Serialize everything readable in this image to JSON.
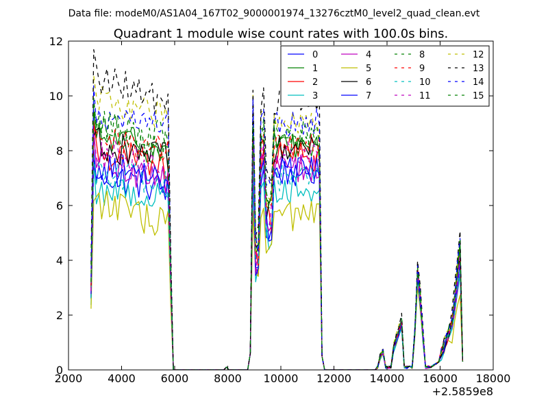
{
  "chart_data": {
    "type": "line",
    "suptitle": "Data file: modeM0/AS1A04_167T02_9000001974_13276cztM0_level2_quad_clean.evt",
    "title": "Quadrant 1 module wise count rates with 100.0s bins.",
    "xlabel": "",
    "ylabel": "",
    "x_offset_label": "+2.5859e8",
    "xlim": [
      2000,
      18000
    ],
    "ylim": [
      0,
      12
    ],
    "xticks": [
      2000,
      4000,
      6000,
      8000,
      10000,
      12000,
      14000,
      16000,
      18000
    ],
    "yticks": [
      0,
      2,
      4,
      6,
      8,
      10,
      12
    ],
    "grid": false,
    "legend_position": "top-right",
    "legend_columns": 4,
    "x_step": 100,
    "segments": [
      {
        "x_start": 2850,
        "x_end": 5850
      },
      {
        "x_start": 5950,
        "x_end": 8750,
        "level": 0.0
      },
      {
        "x_start": 8850,
        "x_end": 11550
      },
      {
        "x_start": 11650,
        "x_end": 13550,
        "level": 0.0
      },
      {
        "x_start": 13650,
        "x_end": 16850
      }
    ],
    "series": [
      {
        "name": "0",
        "color": "#0000ff",
        "dashed": false,
        "levels": [
          7.2,
          6.6,
          5.0,
          7.2,
          3.8,
          2.6,
          1.7,
          0.9,
          3.3,
          1.0
        ]
      },
      {
        "name": "1",
        "color": "#008000",
        "dashed": false,
        "levels": [
          8.5,
          8.0,
          6.0,
          8.2,
          4.2,
          3.0,
          1.9,
          1.0,
          3.6,
          1.1
        ]
      },
      {
        "name": "2",
        "color": "#ff0000",
        "dashed": false,
        "levels": [
          8.0,
          7.4,
          5.5,
          7.8,
          4.0,
          2.8,
          1.7,
          0.9,
          3.4,
          1.0
        ]
      },
      {
        "name": "3",
        "color": "#00bfbf",
        "dashed": false,
        "levels": [
          6.6,
          6.3,
          4.9,
          6.6,
          3.6,
          2.5,
          1.6,
          0.8,
          3.1,
          0.9
        ]
      },
      {
        "name": "4",
        "color": "#bf00bf",
        "dashed": false,
        "levels": [
          7.6,
          7.0,
          5.3,
          7.4,
          3.9,
          2.7,
          1.7,
          0.9,
          3.3,
          1.0
        ]
      },
      {
        "name": "5",
        "color": "#bfbf00",
        "dashed": false,
        "levels": [
          6.2,
          5.3,
          4.4,
          5.6,
          3.4,
          2.4,
          1.6,
          0.8,
          3.0,
          0.9
        ]
      },
      {
        "name": "6",
        "color": "#000000",
        "dashed": false,
        "levels": [
          8.3,
          7.7,
          5.8,
          8.0,
          4.1,
          2.9,
          1.8,
          0.9,
          3.5,
          1.0
        ]
      },
      {
        "name": "7",
        "color": "#0000ff",
        "dashed": false,
        "levels": [
          7.4,
          7.0,
          5.2,
          7.3,
          3.9,
          2.7,
          1.7,
          0.9,
          3.3,
          1.0
        ]
      },
      {
        "name": "8",
        "color": "#008000",
        "dashed": true,
        "levels": [
          9.0,
          8.2,
          6.2,
          8.4,
          4.3,
          3.0,
          1.9,
          1.0,
          3.7,
          1.1
        ]
      },
      {
        "name": "9",
        "color": "#ff0000",
        "dashed": true,
        "levels": [
          8.4,
          8.0,
          6.0,
          8.2,
          4.2,
          3.0,
          1.8,
          1.0,
          3.6,
          1.1
        ]
      },
      {
        "name": "10",
        "color": "#00bfbf",
        "dashed": true,
        "levels": [
          7.3,
          6.8,
          5.0,
          7.0,
          3.8,
          2.6,
          1.6,
          0.9,
          3.2,
          1.0
        ]
      },
      {
        "name": "11",
        "color": "#bf00bf",
        "dashed": true,
        "levels": [
          8.0,
          7.5,
          5.6,
          7.8,
          4.0,
          2.8,
          1.8,
          0.9,
          3.4,
          1.0
        ]
      },
      {
        "name": "12",
        "color": "#bfbf00",
        "dashed": true,
        "levels": [
          9.9,
          9.2,
          6.5,
          9.1,
          4.6,
          3.3,
          2.0,
          1.0,
          3.9,
          1.2
        ]
      },
      {
        "name": "13",
        "color": "#000000",
        "dashed": true,
        "levels": [
          10.7,
          9.8,
          7.0,
          9.8,
          4.9,
          3.5,
          2.1,
          1.1,
          4.1,
          1.2
        ]
      },
      {
        "name": "14",
        "color": "#0000ff",
        "dashed": true,
        "levels": [
          9.4,
          8.9,
          6.6,
          9.0,
          4.6,
          3.2,
          2.0,
          1.0,
          3.9,
          1.1
        ]
      },
      {
        "name": "15",
        "color": "#008000",
        "dashed": true,
        "levels": [
          8.9,
          8.5,
          6.4,
          8.6,
          4.4,
          3.1,
          1.9,
          1.0,
          3.8,
          1.1
        ]
      }
    ]
  }
}
